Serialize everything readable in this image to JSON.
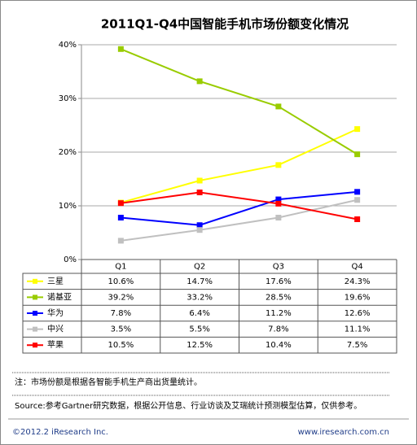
{
  "chart_data": {
    "type": "line",
    "title": "2011Q1-Q4中国智能手机市场份额变化情况",
    "categories": [
      "Q1",
      "Q2",
      "Q3",
      "Q4"
    ],
    "series": [
      {
        "name": "三星",
        "color": "#ffff00",
        "values": [
          10.6,
          14.7,
          17.6,
          24.3
        ],
        "value_labels": [
          "10.6%",
          "14.7%",
          "17.6%",
          "24.3%"
        ]
      },
      {
        "name": "诺基亚",
        "color": "#99cc00",
        "values": [
          39.2,
          33.2,
          28.5,
          19.6
        ],
        "value_labels": [
          "39.2%",
          "33.2%",
          "28.5%",
          "19.6%"
        ]
      },
      {
        "name": "华为",
        "color": "#0000ff",
        "values": [
          7.8,
          6.4,
          11.2,
          12.6
        ],
        "value_labels": [
          "7.8%",
          "6.4%",
          "11.2%",
          "12.6%"
        ]
      },
      {
        "name": "中兴",
        "color": "#c0c0c0",
        "values": [
          3.5,
          5.5,
          7.8,
          11.1
        ],
        "value_labels": [
          "3.5%",
          "5.5%",
          "7.8%",
          "11.1%"
        ]
      },
      {
        "name": "苹果",
        "color": "#ff0000",
        "values": [
          10.5,
          12.5,
          10.4,
          7.5
        ],
        "value_labels": [
          "10.5%",
          "12.5%",
          "10.4%",
          "7.5%"
        ]
      }
    ],
    "ylim": [
      0,
      40
    ],
    "yticks": [
      {
        "value": 0,
        "label": "0%"
      },
      {
        "value": 10,
        "label": "10%"
      },
      {
        "value": 20,
        "label": "20%"
      },
      {
        "value": 30,
        "label": "30%"
      },
      {
        "value": 40,
        "label": "40%"
      }
    ],
    "grid": true,
    "note": "注：市场份额是根据各智能手机生产商出货量统计。",
    "source": "Source:参考Gartner研究数据，根据公开信息、行业访谈及艾瑞统计预测模型估算，仅供参考。",
    "copyright": "©2012.2 iResearch Inc.",
    "website": "www.iresearch.com.cn"
  }
}
